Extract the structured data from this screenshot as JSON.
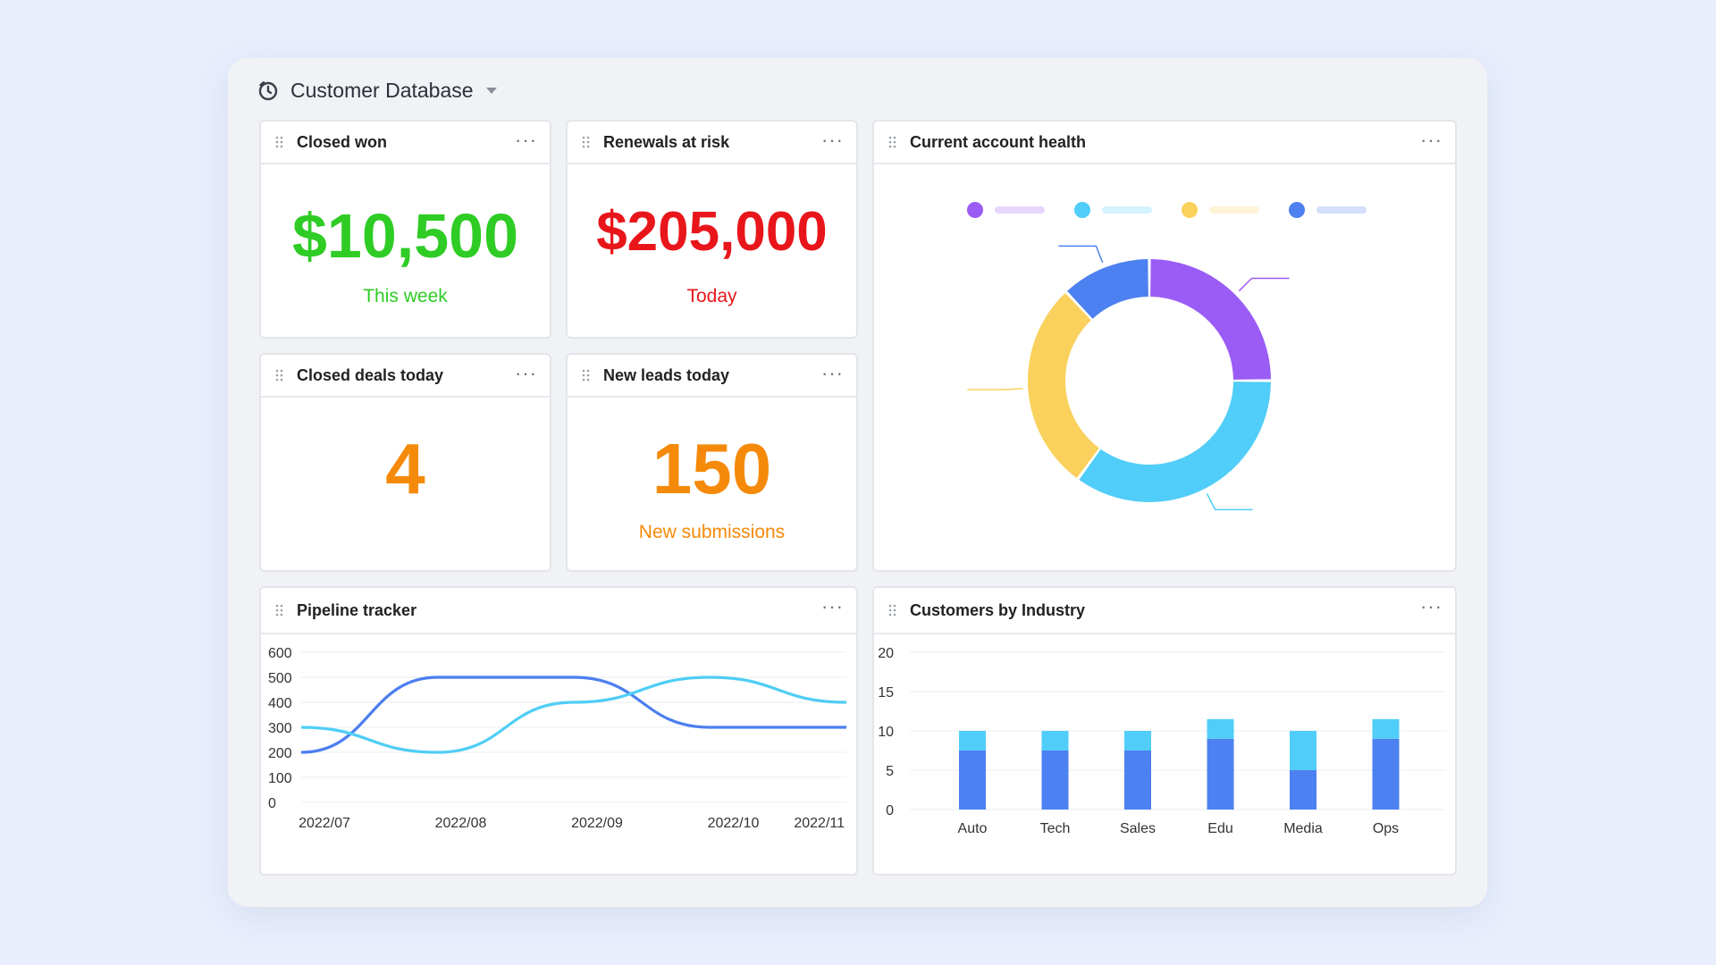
{
  "header": {
    "title": "Customer Database",
    "icon": "timer-icon"
  },
  "cards": {
    "closed_won": {
      "title": "Closed won",
      "value": "$10,500",
      "sub": "This week",
      "color": "#2ecc24"
    },
    "renewals": {
      "title": "Renewals at risk",
      "value": "$205,000",
      "sub": "Today",
      "color": "#e8161b"
    },
    "closed_deals": {
      "title": "Closed deals today",
      "value": "4",
      "color": "#f58a0a"
    },
    "new_leads": {
      "title": "New leads today",
      "value": "150",
      "sub": "New submissions",
      "color": "#f58a0a"
    },
    "health": {
      "title": "Current account health"
    },
    "pipeline": {
      "title": "Pipeline tracker"
    },
    "industry": {
      "title": "Customers by Industry"
    }
  },
  "more_label": "···",
  "chart_data": [
    {
      "type": "pie",
      "donut": true,
      "legend_position": "top",
      "slices": [
        {
          "value": 25,
          "color": "#9b5cf6"
        },
        {
          "value": 35,
          "color": "#50cdf8"
        },
        {
          "value": 28,
          "color": "#f9d15c"
        },
        {
          "value": 12,
          "color": "#4d80f0"
        }
      ]
    },
    {
      "type": "line",
      "x": [
        "2022/07",
        "2022/08",
        "2022/09",
        "2022/10",
        "2022/11"
      ],
      "yticks": [
        "0",
        "100",
        "200",
        "300",
        "400",
        "500",
        "600"
      ],
      "ylim": [
        0,
        600
      ],
      "series": [
        {
          "color": "#4d7ef0",
          "values": [
            200,
            500,
            500,
            300,
            300
          ]
        },
        {
          "color": "#4fcdf5",
          "values": [
            300,
            200,
            400,
            500,
            400
          ]
        }
      ]
    },
    {
      "type": "bar",
      "stacked": true,
      "categories": [
        "Auto",
        "Tech",
        "Sales",
        "Edu",
        "Media",
        "Ops"
      ],
      "yticks": [
        "0",
        "5",
        "10",
        "15",
        "20"
      ],
      "ylim": [
        0,
        20
      ],
      "series": [
        {
          "color": "#4d80f0",
          "values": [
            7.5,
            7.5,
            7.5,
            9,
            5,
            9
          ]
        },
        {
          "color": "#50cdf8",
          "values": [
            2.5,
            2.5,
            2.5,
            2.5,
            5,
            2.5
          ]
        }
      ]
    }
  ]
}
